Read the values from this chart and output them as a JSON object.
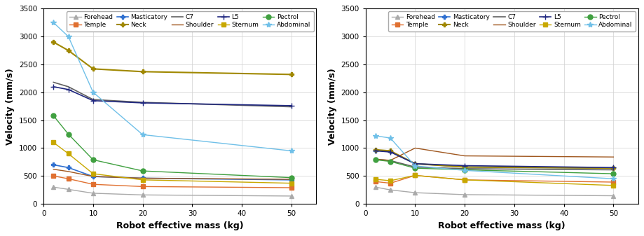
{
  "x": [
    2,
    5,
    10,
    20,
    50
  ],
  "series_left": {
    "Forehead": [
      300,
      260,
      190,
      160,
      140
    ],
    "Temple": [
      500,
      450,
      350,
      310,
      290
    ],
    "Masticatory": [
      700,
      650,
      490,
      460,
      430
    ],
    "Neck": [
      2900,
      2750,
      2420,
      2370,
      2320
    ],
    "C7": [
      2180,
      2100,
      1870,
      1820,
      1740
    ],
    "Shoulder": [
      620,
      580,
      490,
      460,
      440
    ],
    "L5": [
      2100,
      2050,
      1850,
      1810,
      1760
    ],
    "Sternum": [
      1100,
      900,
      540,
      430,
      370
    ],
    "Pectrol": [
      1580,
      1250,
      790,
      590,
      470
    ],
    "Abdominal": [
      3250,
      3000,
      2000,
      1240,
      950
    ]
  },
  "series_right": {
    "Forehead": [
      300,
      250,
      200,
      165,
      145
    ],
    "Temple": [
      400,
      370,
      510,
      430,
      390
    ],
    "Masticatory": [
      960,
      940,
      720,
      660,
      640
    ],
    "Neck": [
      970,
      950,
      720,
      660,
      640
    ],
    "C7": [
      800,
      775,
      660,
      630,
      610
    ],
    "Shoulder": [
      800,
      780,
      1000,
      860,
      840
    ],
    "L5": [
      950,
      930,
      720,
      685,
      650
    ],
    "Sternum": [
      440,
      415,
      510,
      430,
      330
    ],
    "Pectrol": [
      790,
      760,
      640,
      610,
      540
    ],
    "Abdominal": [
      1220,
      1180,
      680,
      600,
      450
    ]
  },
  "colors": {
    "Forehead": "#aaaaaa",
    "Temple": "#E07030",
    "Masticatory": "#3070D0",
    "Neck": "#A08800",
    "C7": "#606060",
    "Shoulder": "#A05820",
    "L5": "#202880",
    "Sternum": "#C8A800",
    "Pectrol": "#40A040",
    "Abdominal": "#70C0E8"
  },
  "markers": {
    "Forehead": "^",
    "Temple": "s",
    "Masticatory": "P",
    "Neck": "P",
    "C7": "",
    "Shoulder": "",
    "L5": "+",
    "Sternum": "s",
    "Pectrol": "o",
    "Abdominal": "*"
  },
  "markersize": {
    "Forehead": 4,
    "Temple": 4,
    "Masticatory": 5,
    "Neck": 5,
    "C7": 0,
    "Shoulder": 0,
    "L5": 6,
    "Sternum": 4,
    "Pectrol": 5,
    "Abdominal": 6
  },
  "linewidth": {
    "Forehead": 1.0,
    "Temple": 1.0,
    "Masticatory": 1.2,
    "Neck": 1.5,
    "C7": 1.2,
    "Shoulder": 1.0,
    "L5": 1.2,
    "Sternum": 1.0,
    "Pectrol": 1.0,
    "Abdominal": 1.0
  },
  "ylim_left": [
    0,
    3500
  ],
  "ylim_right": [
    0,
    3500
  ],
  "yticks_left": [
    0,
    500,
    1000,
    1500,
    2000,
    2500,
    3000,
    3500
  ],
  "yticks_right": [
    0,
    500,
    1000,
    1500,
    2000,
    2500,
    3000,
    3500
  ],
  "xlim": [
    0,
    55
  ],
  "xticks": [
    0,
    10,
    20,
    30,
    40,
    50
  ],
  "xlabel": "Robot effective mass (kg)",
  "ylabel": "Velocity (mm/s)",
  "legend_order": [
    "Forehead",
    "Temple",
    "Masticatory",
    "Neck",
    "C7",
    "Shoulder",
    "L5",
    "Sternum",
    "Pectrol",
    "Abdominal"
  ],
  "legend_ncol": 5,
  "legend_fontsize": 6.5,
  "tick_fontsize": 7.5,
  "label_fontsize": 9
}
